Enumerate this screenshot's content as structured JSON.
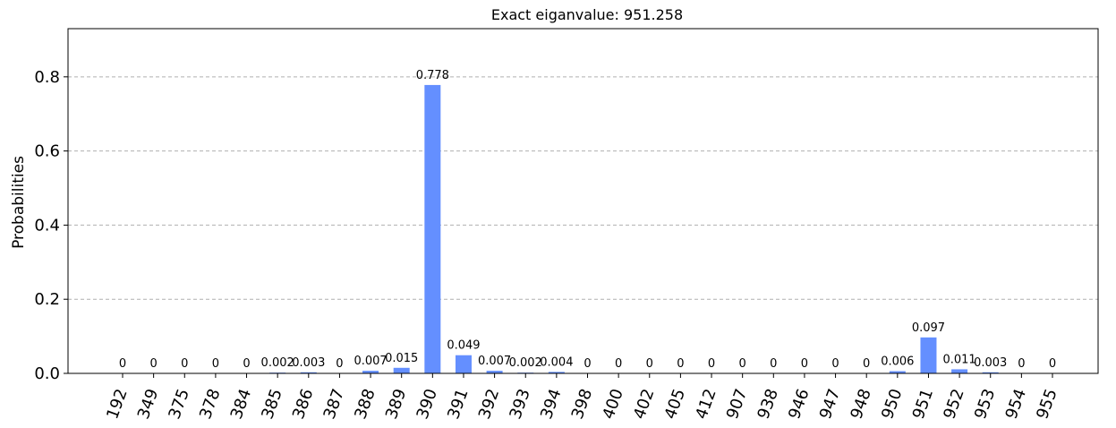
{
  "chart_data": {
    "type": "bar",
    "title": "Exact eiganvalue: 951.258",
    "xlabel": "",
    "ylabel": "Probabilities",
    "ylim": [
      0,
      0.93
    ],
    "yticks": [
      "0.0",
      "0.2",
      "0.4",
      "0.6",
      "0.8"
    ],
    "ytick_values": [
      0,
      0.2,
      0.4,
      0.6,
      0.8
    ],
    "grid": "horizontal-dashed",
    "bar_color": "#648fff",
    "categories": [
      "192",
      "349",
      "375",
      "378",
      "384",
      "385",
      "386",
      "387",
      "388",
      "389",
      "390",
      "391",
      "392",
      "393",
      "394",
      "398",
      "400",
      "402",
      "405",
      "412",
      "907",
      "938",
      "946",
      "947",
      "948",
      "950",
      "951",
      "952",
      "953",
      "954",
      "955"
    ],
    "values": [
      0,
      0,
      0,
      0,
      0,
      0.002,
      0.003,
      0,
      0.007,
      0.015,
      0.778,
      0.049,
      0.007,
      0.002,
      0.004,
      0,
      0,
      0,
      0,
      0,
      0,
      0,
      0,
      0,
      0,
      0.006,
      0.097,
      0.011,
      0.003,
      0,
      0
    ],
    "value_labels": [
      "0",
      "0",
      "0",
      "0",
      "0",
      "0.002",
      "0.003",
      "0",
      "0.007",
      "0.015",
      "0.778",
      "0.049",
      "0.007",
      "0.002",
      "0.004",
      "0",
      "0",
      "0",
      "0",
      "0",
      "0",
      "0",
      "0",
      "0",
      "0",
      "0.006",
      "0.097",
      "0.011",
      "0.003",
      "0",
      "0"
    ]
  }
}
